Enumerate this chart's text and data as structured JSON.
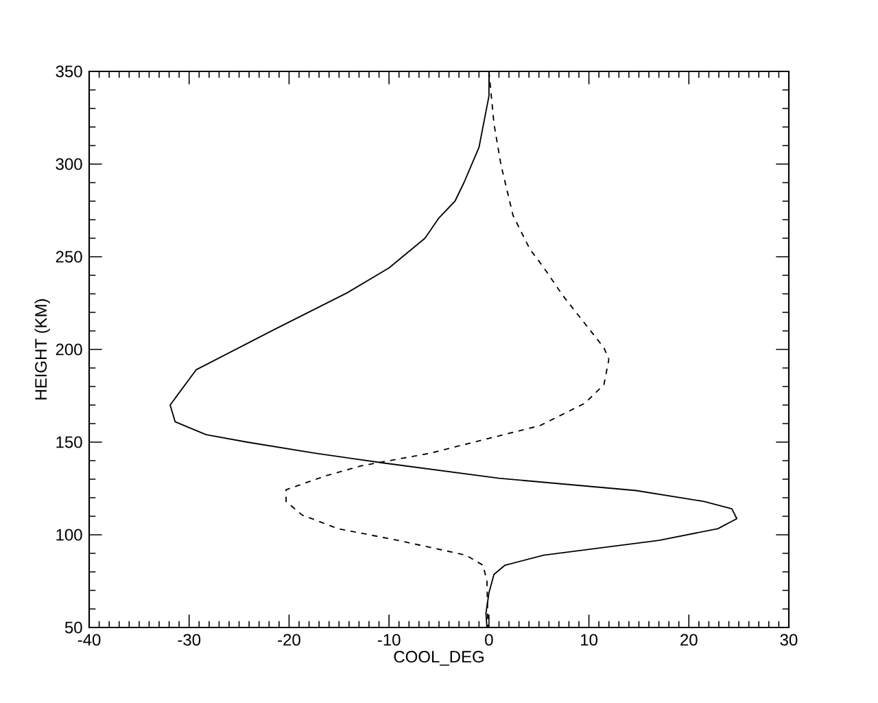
{
  "chart_data": {
    "type": "line",
    "xlabel": "COOL_DEG",
    "ylabel": "HEIGHT (KM)",
    "xlim": [
      -40,
      30
    ],
    "ylim": [
      50,
      350
    ],
    "xticks": [
      -40,
      -30,
      -20,
      -10,
      0,
      10,
      20,
      30
    ],
    "yticks": [
      50,
      100,
      150,
      200,
      250,
      300,
      350
    ],
    "series": [
      {
        "color": "#000000",
        "line_style": "solid",
        "x": [
          0,
          0.0,
          -1.0,
          -2.5,
          -3.4,
          -5.0,
          -6.4,
          -10.0,
          -14.2,
          -21.5,
          -29.3,
          -31.9,
          -31.4,
          -28.3,
          -24.2,
          -17.4,
          -10.5,
          1.0,
          14.7,
          21.5,
          24.3,
          24.8,
          22.9,
          17.0,
          5.5,
          1.6,
          0.5,
          0.0,
          -0.3,
          -0.2
        ],
        "values": [
          350,
          336.7,
          309,
          290,
          280,
          271,
          260,
          244,
          230.5,
          210.7,
          189,
          170,
          161,
          154,
          150,
          144,
          138.7,
          130.5,
          123.9,
          118,
          114,
          108.7,
          103.3,
          97,
          89,
          83.6,
          78.6,
          68.8,
          57.6,
          50
        ]
      },
      {
        "color": "#000000",
        "line_style": "dashed",
        "x": [
          0,
          0.5,
          1.2,
          2.4,
          4.1,
          5.5,
          7.4,
          11.5,
          12.0,
          11.5,
          9.6,
          5.1,
          -0.4,
          -5.9,
          -12.8,
          -16.4,
          -20.3,
          -20.3,
          -18.7,
          -15.1,
          -9.1,
          -2.3,
          -0.6,
          -0.2,
          -0.1
        ],
        "values": [
          350,
          321.8,
          299.6,
          272.4,
          254,
          244,
          229,
          200.9,
          194.7,
          181,
          171,
          158.9,
          151.5,
          144,
          137.2,
          131.7,
          124.3,
          118,
          110.7,
          103.3,
          97,
          89,
          83.6,
          75,
          50
        ]
      }
    ]
  }
}
